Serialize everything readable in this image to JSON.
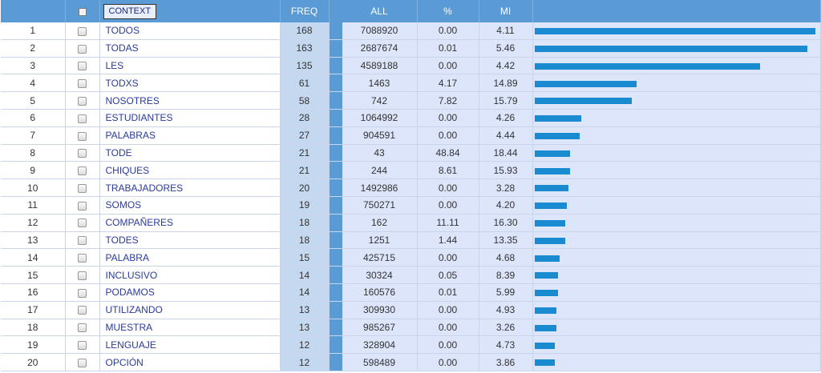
{
  "headers": {
    "context": "CONTEXT",
    "freq": "FREQ",
    "all": "ALL",
    "pct": "%",
    "mi": "MI"
  },
  "rows": [
    {
      "n": "1",
      "word": "TODOS",
      "freq": "168",
      "all": "7088920",
      "pct": "0.00",
      "mi": "4.11"
    },
    {
      "n": "2",
      "word": "TODAS",
      "freq": "163",
      "all": "2687674",
      "pct": "0.01",
      "mi": "5.46"
    },
    {
      "n": "3",
      "word": "LES",
      "freq": "135",
      "all": "4589188",
      "pct": "0.00",
      "mi": "4.42"
    },
    {
      "n": "4",
      "word": "TODXS",
      "freq": "61",
      "all": "1463",
      "pct": "4.17",
      "mi": "14.89"
    },
    {
      "n": "5",
      "word": "NOSOTRES",
      "freq": "58",
      "all": "742",
      "pct": "7.82",
      "mi": "15.79"
    },
    {
      "n": "6",
      "word": "ESTUDIANTES",
      "freq": "28",
      "all": "1064992",
      "pct": "0.00",
      "mi": "4.26"
    },
    {
      "n": "7",
      "word": "PALABRAS",
      "freq": "27",
      "all": "904591",
      "pct": "0.00",
      "mi": "4.44"
    },
    {
      "n": "8",
      "word": "TODE",
      "freq": "21",
      "all": "43",
      "pct": "48.84",
      "mi": "18.44"
    },
    {
      "n": "9",
      "word": "CHIQUES",
      "freq": "21",
      "all": "244",
      "pct": "8.61",
      "mi": "15.93"
    },
    {
      "n": "10",
      "word": "TRABAJADORES",
      "freq": "20",
      "all": "1492986",
      "pct": "0.00",
      "mi": "3.28"
    },
    {
      "n": "11",
      "word": "SOMOS",
      "freq": "19",
      "all": "750271",
      "pct": "0.00",
      "mi": "4.20"
    },
    {
      "n": "12",
      "word": "COMPAÑERES",
      "freq": "18",
      "all": "162",
      "pct": "11.11",
      "mi": "16.30"
    },
    {
      "n": "13",
      "word": "TODES",
      "freq": "18",
      "all": "1251",
      "pct": "1.44",
      "mi": "13.35"
    },
    {
      "n": "14",
      "word": "PALABRA",
      "freq": "15",
      "all": "425715",
      "pct": "0.00",
      "mi": "4.68"
    },
    {
      "n": "15",
      "word": "INCLUSIVO",
      "freq": "14",
      "all": "30324",
      "pct": "0.05",
      "mi": "8.39"
    },
    {
      "n": "16",
      "word": "PODAMOS",
      "freq": "14",
      "all": "160576",
      "pct": "0.01",
      "mi": "5.99"
    },
    {
      "n": "17",
      "word": "UTILIZANDO",
      "freq": "13",
      "all": "309930",
      "pct": "0.00",
      "mi": "4.93"
    },
    {
      "n": "18",
      "word": "MUESTRA",
      "freq": "13",
      "all": "985267",
      "pct": "0.00",
      "mi": "3.26"
    },
    {
      "n": "19",
      "word": "LENGUAJE",
      "freq": "12",
      "all": "328904",
      "pct": "0.00",
      "mi": "4.73"
    },
    {
      "n": "20",
      "word": "OPCIÓN",
      "freq": "12",
      "all": "598489",
      "pct": "0.00",
      "mi": "3.86"
    }
  ],
  "colors": {
    "header": "#5b9bd5",
    "bar": "#1a8bd0",
    "freq_col": "#c4d8f0",
    "cell": "#dde5fb"
  }
}
